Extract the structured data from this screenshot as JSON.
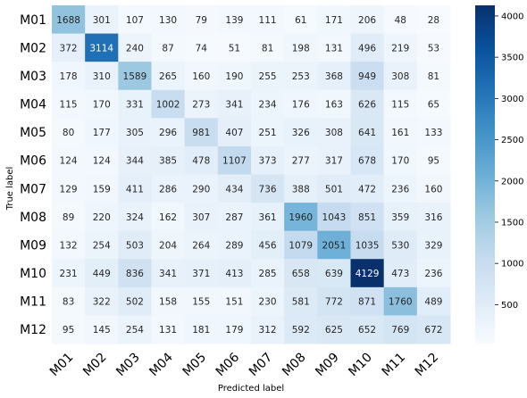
{
  "chart_data": {
    "type": "heatmap",
    "title": "",
    "xlabel": "Predicted label",
    "ylabel": "True label",
    "x_categories": [
      "M01",
      "M02",
      "M03",
      "M04",
      "M05",
      "M06",
      "M07",
      "M08",
      "M09",
      "M10",
      "M11",
      "M12"
    ],
    "y_categories": [
      "M01",
      "M02",
      "M03",
      "M04",
      "M05",
      "M06",
      "M07",
      "M08",
      "M09",
      "M10",
      "M11",
      "M12"
    ],
    "values": [
      [
        1688,
        301,
        107,
        130,
        79,
        139,
        111,
        61,
        171,
        206,
        48,
        28
      ],
      [
        372,
        3114,
        240,
        87,
        74,
        51,
        81,
        198,
        131,
        496,
        219,
        53
      ],
      [
        178,
        310,
        1589,
        265,
        160,
        190,
        255,
        253,
        368,
        949,
        308,
        81
      ],
      [
        115,
        170,
        331,
        1002,
        273,
        341,
        234,
        176,
        163,
        626,
        115,
        65
      ],
      [
        80,
        177,
        305,
        296,
        981,
        407,
        251,
        326,
        308,
        641,
        161,
        133
      ],
      [
        124,
        124,
        344,
        385,
        478,
        1107,
        373,
        277,
        317,
        678,
        170,
        95
      ],
      [
        129,
        159,
        411,
        286,
        290,
        434,
        736,
        388,
        501,
        472,
        236,
        160
      ],
      [
        89,
        220,
        324,
        162,
        307,
        287,
        361,
        1960,
        1043,
        851,
        359,
        316
      ],
      [
        132,
        254,
        503,
        204,
        264,
        289,
        456,
        1079,
        2051,
        1035,
        530,
        329
      ],
      [
        231,
        449,
        836,
        341,
        371,
        413,
        285,
        658,
        639,
        4129,
        473,
        236
      ],
      [
        83,
        322,
        502,
        158,
        155,
        151,
        230,
        581,
        772,
        871,
        1760,
        489
      ],
      [
        95,
        145,
        254,
        131,
        181,
        179,
        312,
        592,
        625,
        652,
        769,
        672
      ]
    ],
    "colormap": "Blues",
    "vmin": 28,
    "vmax": 4129,
    "colorbar_ticks": [
      500,
      1000,
      1500,
      2000,
      2500,
      3000,
      3500,
      4000
    ]
  }
}
